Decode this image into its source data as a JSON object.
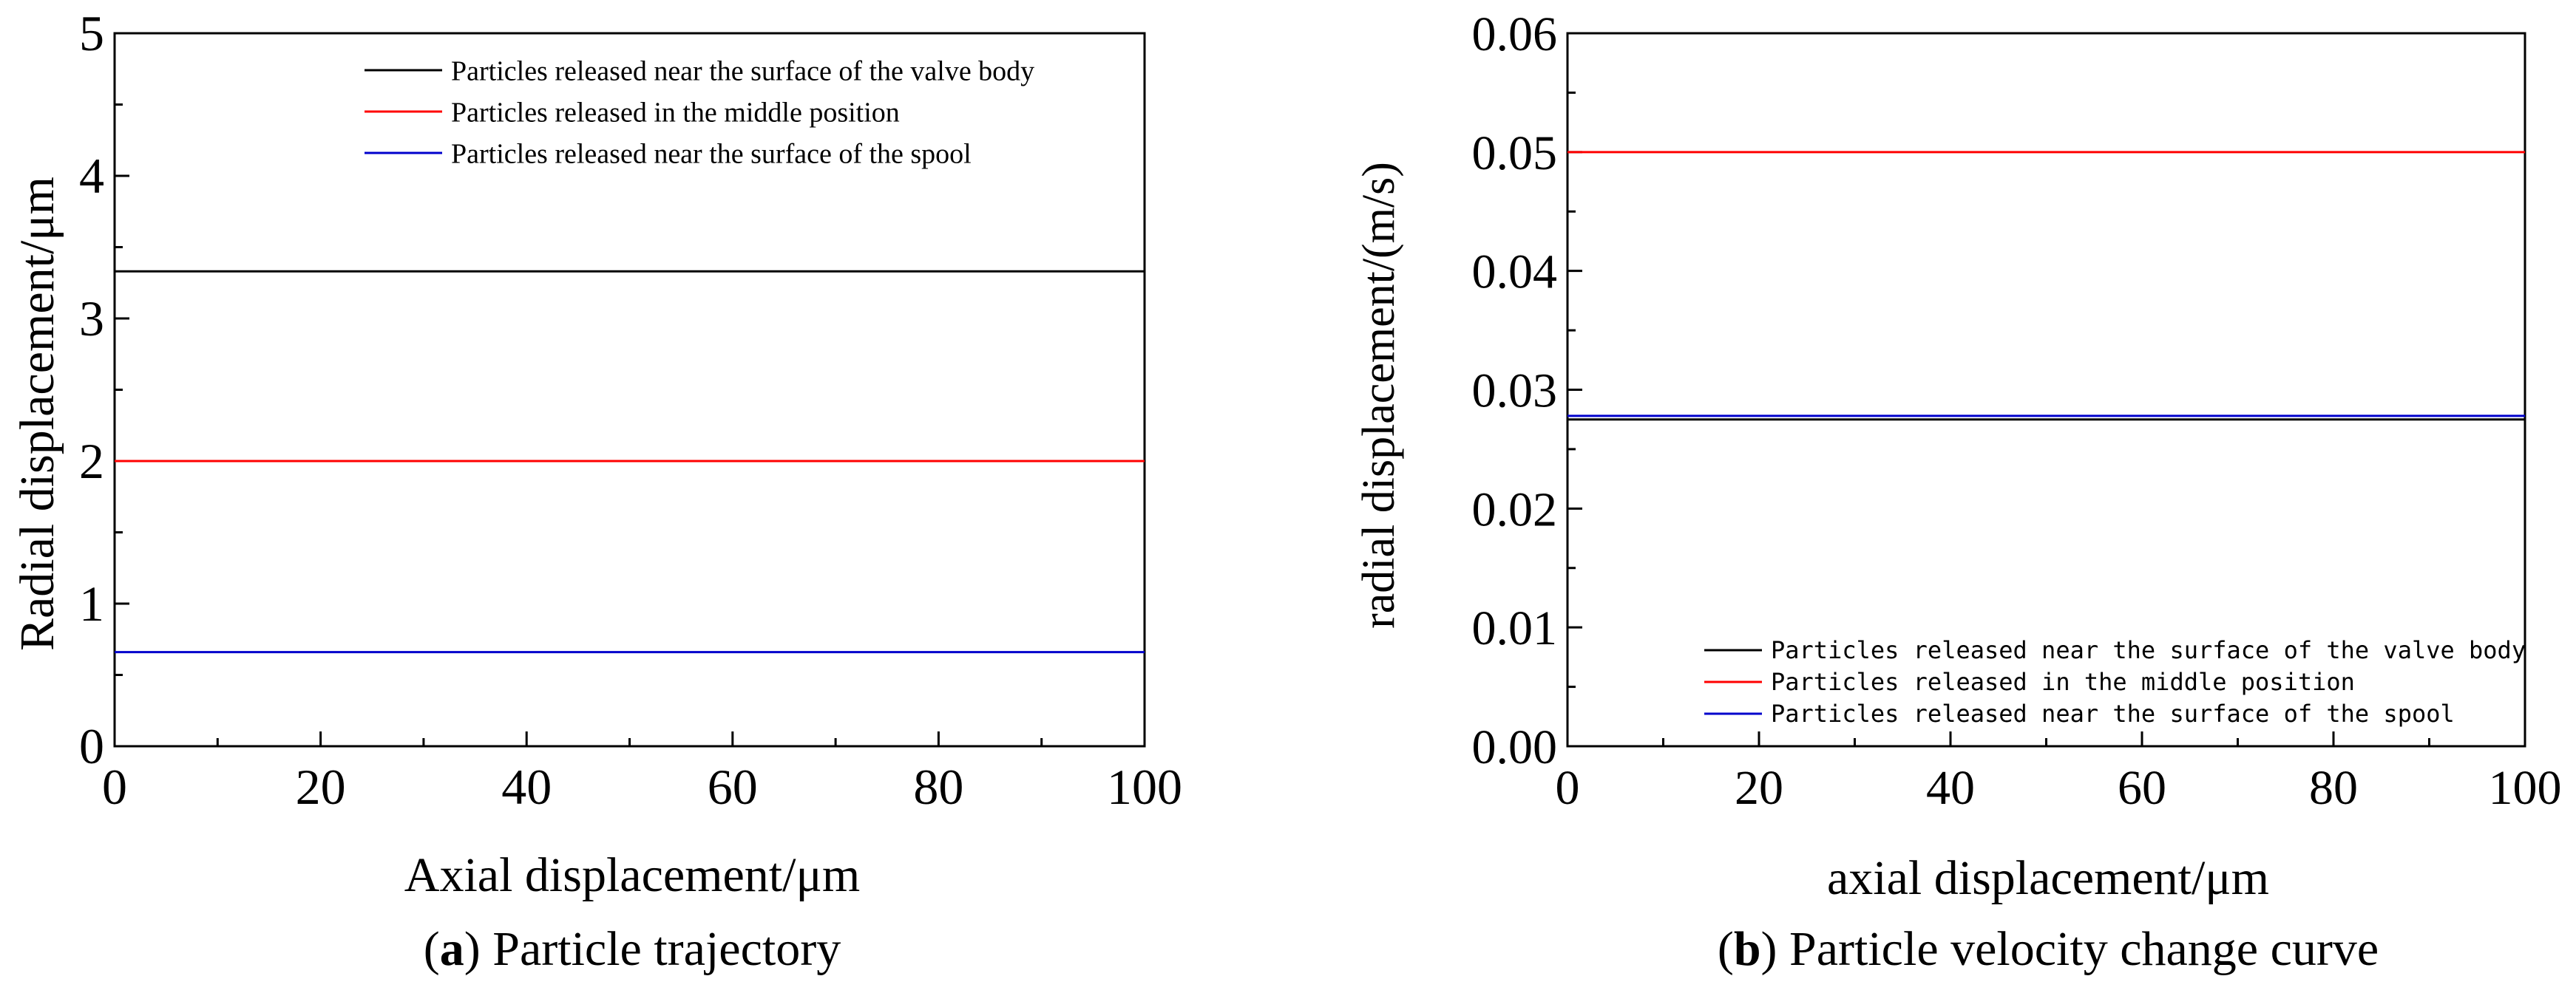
{
  "panels": {
    "a": {
      "caption_letter": "a",
      "caption_text": " Particle trajectory"
    },
    "b": {
      "caption_letter": "b",
      "caption_text": " Particle velocity change curve"
    }
  },
  "colors": {
    "valve_body": "#000000",
    "middle": "#ff0000",
    "spool": "#0000cc",
    "axis": "#000000"
  },
  "chart_data": [
    {
      "type": "line",
      "title": "",
      "xlabel": "Axial displacement/μm",
      "ylabel": "Radial displacement/μm",
      "xlim": [
        0,
        100
      ],
      "ylim": [
        0,
        5
      ],
      "xticks": [
        0,
        20,
        40,
        60,
        80,
        100
      ],
      "xtick_labels": [
        "0",
        "20",
        "40",
        "60",
        "80",
        "100"
      ],
      "yticks": [
        0,
        1,
        2,
        3,
        4,
        5
      ],
      "ytick_labels": [
        "0",
        "1",
        "2",
        "3",
        "4",
        "5"
      ],
      "legend_position": "top-right",
      "grid": false,
      "series": [
        {
          "name": "Particles released near the surface of the valve body",
          "x": [
            0,
            100
          ],
          "y": [
            3.33,
            3.33
          ]
        },
        {
          "name": "Particles released in the middle position",
          "x": [
            0,
            100
          ],
          "y": [
            2.0,
            2.0
          ]
        },
        {
          "name": "Particles released near the surface of the spool",
          "x": [
            0,
            100
          ],
          "y": [
            0.66,
            0.66
          ]
        }
      ]
    },
    {
      "type": "line",
      "title": "",
      "xlabel": "axial displacement/μm",
      "ylabel": "radial displacement/(m/s)",
      "xlim": [
        0,
        100
      ],
      "ylim": [
        0,
        0.06
      ],
      "xticks": [
        0,
        20,
        40,
        60,
        80,
        100
      ],
      "xtick_labels": [
        "0",
        "20",
        "40",
        "60",
        "80",
        "100"
      ],
      "yticks": [
        0,
        0.01,
        0.02,
        0.03,
        0.04,
        0.05,
        0.06
      ],
      "ytick_labels": [
        "0.00",
        "0.01",
        "0.02",
        "0.03",
        "0.04",
        "0.05",
        "0.06"
      ],
      "legend_position": "bottom-right",
      "grid": false,
      "series": [
        {
          "name": "Particles released near the surface of the valve body",
          "x": [
            0,
            100
          ],
          "y": [
            0.0275,
            0.0275
          ]
        },
        {
          "name": "Particles released in the middle position",
          "x": [
            0,
            100
          ],
          "y": [
            0.05,
            0.05
          ]
        },
        {
          "name": "Particles released near the surface of the spool",
          "x": [
            0,
            100
          ],
          "y": [
            0.0278,
            0.0278
          ]
        }
      ]
    }
  ]
}
